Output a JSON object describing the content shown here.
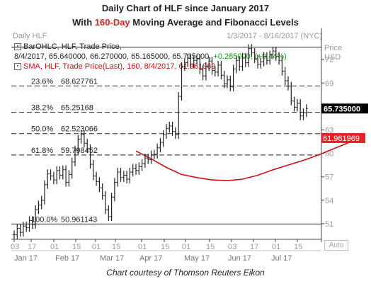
{
  "header": {
    "title_line1": "Daily Chart of HLF since January 2017",
    "title_line2_pre": "With ",
    "title_line2_hl": "160-Day",
    "title_line2_post": " Moving Average and Fibonacci Levels",
    "chart_name": "Daily HLF",
    "date_range": "1/3/2017 - 8/16/2017 (NYC)"
  },
  "legend": {
    "ohlc_line1": "BarOHLC, HLF, Trade Price,",
    "ohlc_line2_main": "8/4/2017, 65.640000, 66.270000, 65.165000, 65.735000,",
    "ohlc_line2_change": "+0.285000, (+0.44%)",
    "sma_line": "SMA, HLF, Trade Price(Last),  160,  8/4/2017, 61.961969"
  },
  "axis_unit": "Price\nUSD",
  "auto_label": "Auto",
  "footer": "Chart courtesy of Thomson Reuters Eikon",
  "colors": {
    "price": "#222222",
    "sma": "#cc1111",
    "fib": "#222222",
    "last_price_bg": "#000000",
    "sma_bg": "#e8202a",
    "accent": "#e02020"
  },
  "chart_data": {
    "type": "line",
    "title": "Daily Chart of HLF since January 2017",
    "ylim": [
      49,
      76
    ],
    "y_ticks": [
      51,
      54,
      57,
      60,
      63,
      66,
      69,
      72
    ],
    "x_ticks": [
      "03",
      "17",
      "01",
      "15",
      "01",
      "15",
      "01",
      "15",
      "01",
      "15",
      "03",
      "17",
      "01",
      "15"
    ],
    "months": [
      "Jan 17",
      "Feb 17",
      "Mar 17",
      "Apr 17",
      "May 17",
      "Jun 17",
      "Jul 17"
    ],
    "last_price_label": "65.735000",
    "sma_value_label": "61.961969",
    "fibonacci": [
      {
        "label": "100.0%",
        "value_text": "50.961143",
        "value": 50.961143
      },
      {
        "label": "61.8%",
        "value_text": "59.798452",
        "value": 59.798452
      },
      {
        "label": "50.0%",
        "value_text": "62.523066",
        "value": 62.523066
      },
      {
        "label": "38.2%",
        "value_text": "65.25168",
        "value": 65.25168
      },
      {
        "label": "23.6%",
        "value_text": "68.627761",
        "value": 68.627761
      },
      {
        "label": "",
        "value_text": "",
        "value": 73.6
      }
    ],
    "series": [
      {
        "name": "SMA, HLF, Trade Price(Last), 160",
        "points": [
          [
            40,
            60.3
          ],
          [
            45,
            59.3
          ],
          [
            50,
            58.2
          ],
          [
            55,
            57.3
          ],
          [
            60,
            56.9
          ],
          [
            65,
            56.6
          ],
          [
            70,
            56.5
          ],
          [
            75,
            56.7
          ],
          [
            80,
            57.2
          ],
          [
            85,
            57.9
          ],
          [
            90,
            58.5
          ],
          [
            95,
            59.1
          ],
          [
            100,
            59.8
          ],
          [
            105,
            60.6
          ],
          [
            110,
            61.4
          ],
          [
            113,
            61.96
          ]
        ]
      },
      {
        "name": "HLF",
        "points": [
          [
            0,
            49.6
          ],
          [
            1,
            50.4
          ],
          [
            2,
            49.9
          ],
          [
            3,
            50.7
          ],
          [
            4,
            50.5
          ],
          [
            5,
            51.4
          ],
          [
            6,
            50.9
          ],
          [
            7,
            52.8
          ],
          [
            8,
            53.4
          ],
          [
            9,
            54.0
          ],
          [
            10,
            56.0
          ],
          [
            11,
            57.4
          ],
          [
            12,
            57.1
          ],
          [
            13,
            56.6
          ],
          [
            14,
            57.8
          ],
          [
            15,
            57.2
          ],
          [
            16,
            57.9
          ],
          [
            17,
            56.3
          ],
          [
            18,
            57.3
          ],
          [
            19,
            58.9
          ],
          [
            20,
            60.4
          ],
          [
            21,
            61.8
          ],
          [
            22,
            62.4
          ],
          [
            23,
            61.3
          ],
          [
            24,
            60.6
          ],
          [
            25,
            58.6
          ],
          [
            26,
            57.1
          ],
          [
            27,
            56.4
          ],
          [
            28,
            55.6
          ],
          [
            29,
            54.6
          ],
          [
            30,
            52.8
          ],
          [
            31,
            51.9
          ],
          [
            32,
            54.4
          ],
          [
            33,
            56.3
          ],
          [
            34,
            57.6
          ],
          [
            35,
            56.9
          ],
          [
            36,
            57.2
          ],
          [
            37,
            56.7
          ],
          [
            38,
            57.6
          ],
          [
            39,
            58.1
          ],
          [
            40,
            57.8
          ],
          [
            41,
            58.3
          ],
          [
            42,
            58.7
          ],
          [
            43,
            59.4
          ],
          [
            44,
            59.2
          ],
          [
            45,
            59.8
          ],
          [
            46,
            59.9
          ],
          [
            47,
            60.7
          ],
          [
            48,
            61.4
          ],
          [
            49,
            62.4
          ],
          [
            50,
            63.2
          ],
          [
            51,
            63.5
          ],
          [
            52,
            62.8
          ],
          [
            53,
            62.4
          ],
          [
            54,
            67.3
          ],
          [
            55,
            71.1
          ],
          [
            56,
            71.6
          ],
          [
            57,
            72.2
          ],
          [
            58,
            71.4
          ],
          [
            59,
            71.9
          ],
          [
            60,
            72.1
          ],
          [
            61,
            70.7
          ],
          [
            62,
            69.9
          ],
          [
            63,
            71.1
          ],
          [
            64,
            71.8
          ],
          [
            65,
            70.6
          ],
          [
            66,
            70.4
          ],
          [
            67,
            71.3
          ],
          [
            68,
            70.0
          ],
          [
            69,
            68.9
          ],
          [
            70,
            69.4
          ],
          [
            71,
            68.5
          ],
          [
            72,
            70.8
          ],
          [
            73,
            71.9
          ],
          [
            74,
            71.1
          ],
          [
            75,
            72.3
          ],
          [
            76,
            71.6
          ],
          [
            77,
            73.4
          ],
          [
            78,
            72.9
          ],
          [
            79,
            72.1
          ],
          [
            80,
            71.4
          ],
          [
            81,
            71.7
          ],
          [
            82,
            72.4
          ],
          [
            83,
            71.9
          ],
          [
            84,
            72.6
          ],
          [
            85,
            73.1
          ],
          [
            86,
            72.4
          ],
          [
            87,
            71.9
          ],
          [
            88,
            70.5
          ],
          [
            89,
            69.3
          ],
          [
            90,
            68.6
          ],
          [
            91,
            66.7
          ],
          [
            92,
            65.9
          ],
          [
            93,
            66.4
          ],
          [
            94,
            64.8
          ],
          [
            95,
            65.2
          ],
          [
            96,
            65.735
          ]
        ]
      }
    ]
  }
}
